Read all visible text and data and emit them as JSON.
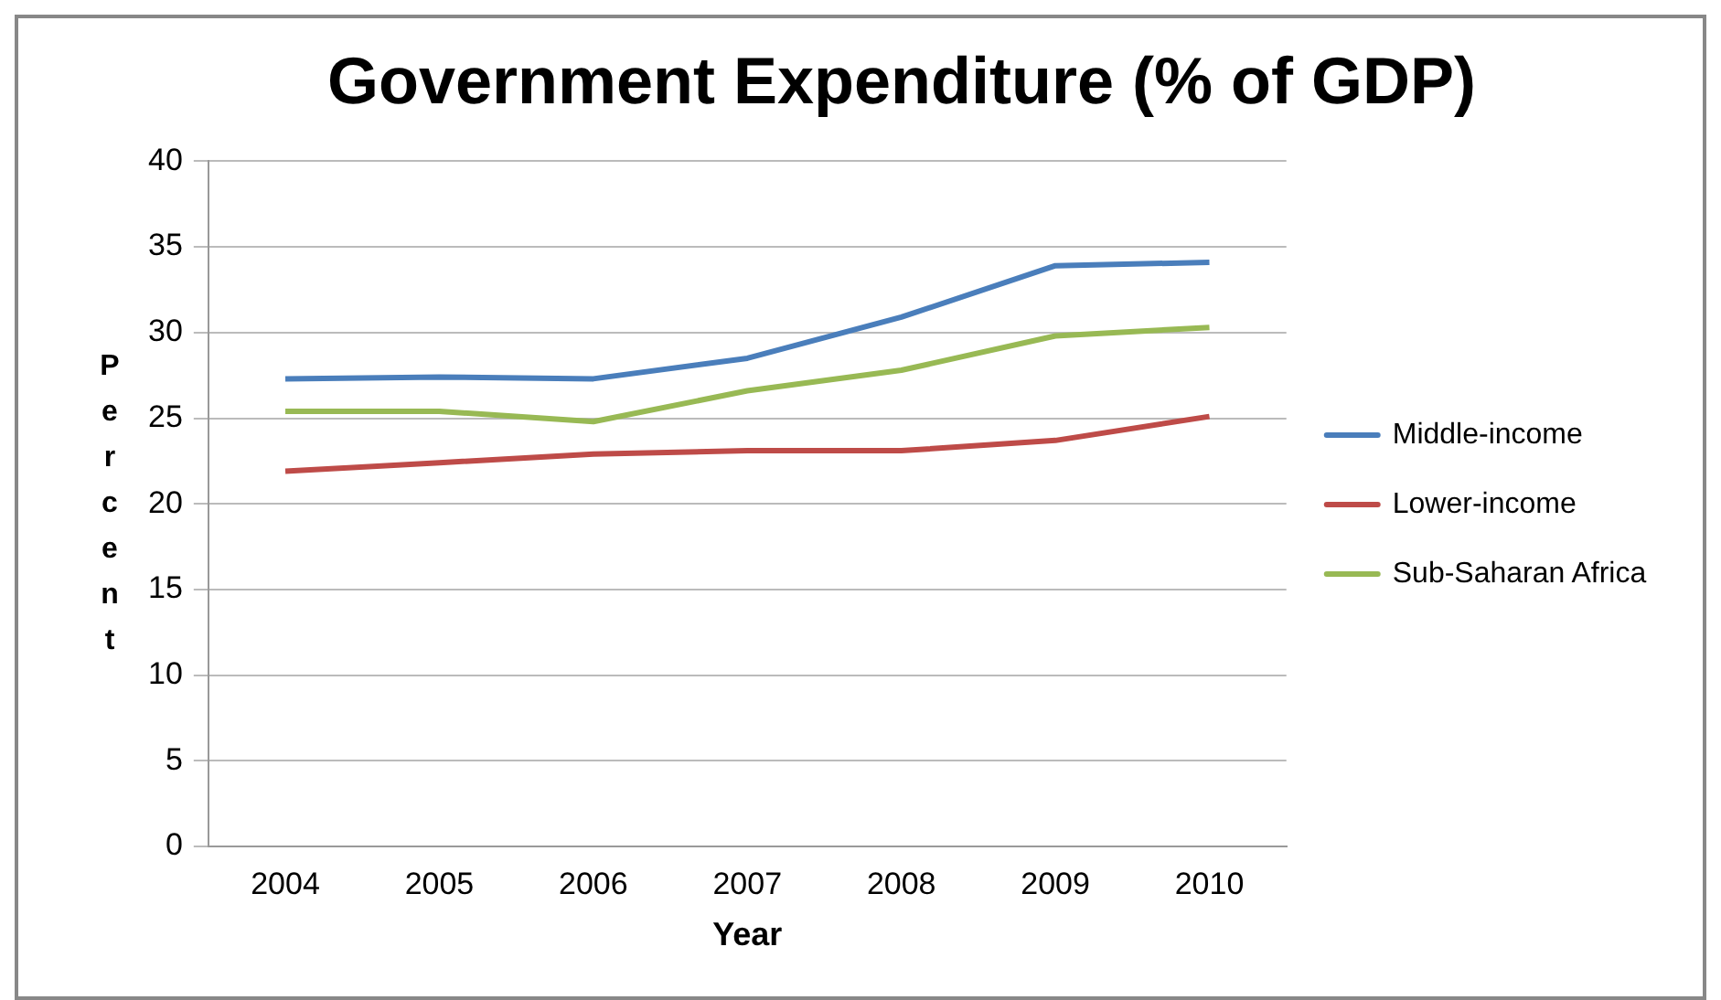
{
  "chart_data": {
    "type": "line",
    "title": "Government Expenditure (% of GDP)",
    "xlabel": "Year",
    "ylabel": "Percent",
    "categories": [
      "2004",
      "2005",
      "2006",
      "2007",
      "2008",
      "2009",
      "2010"
    ],
    "series": [
      {
        "name": "Middle-income",
        "color": "#4a7ebb",
        "values": [
          27.3,
          27.4,
          27.3,
          28.5,
          30.9,
          33.9,
          34.1
        ]
      },
      {
        "name": "Lower-income",
        "color": "#be4b48",
        "values": [
          21.9,
          22.4,
          22.9,
          23.1,
          23.1,
          23.7,
          25.1
        ]
      },
      {
        "name": "Sub-Saharan Africa",
        "color": "#98b954",
        "values": [
          25.4,
          25.4,
          24.8,
          26.6,
          27.8,
          29.8,
          30.3
        ]
      }
    ],
    "ylim": [
      0,
      40
    ],
    "yticks": [
      0,
      5,
      10,
      15,
      20,
      25,
      30,
      35,
      40
    ],
    "grid": "y",
    "legend": "right",
    "marker": "none",
    "line_style": "solid"
  }
}
